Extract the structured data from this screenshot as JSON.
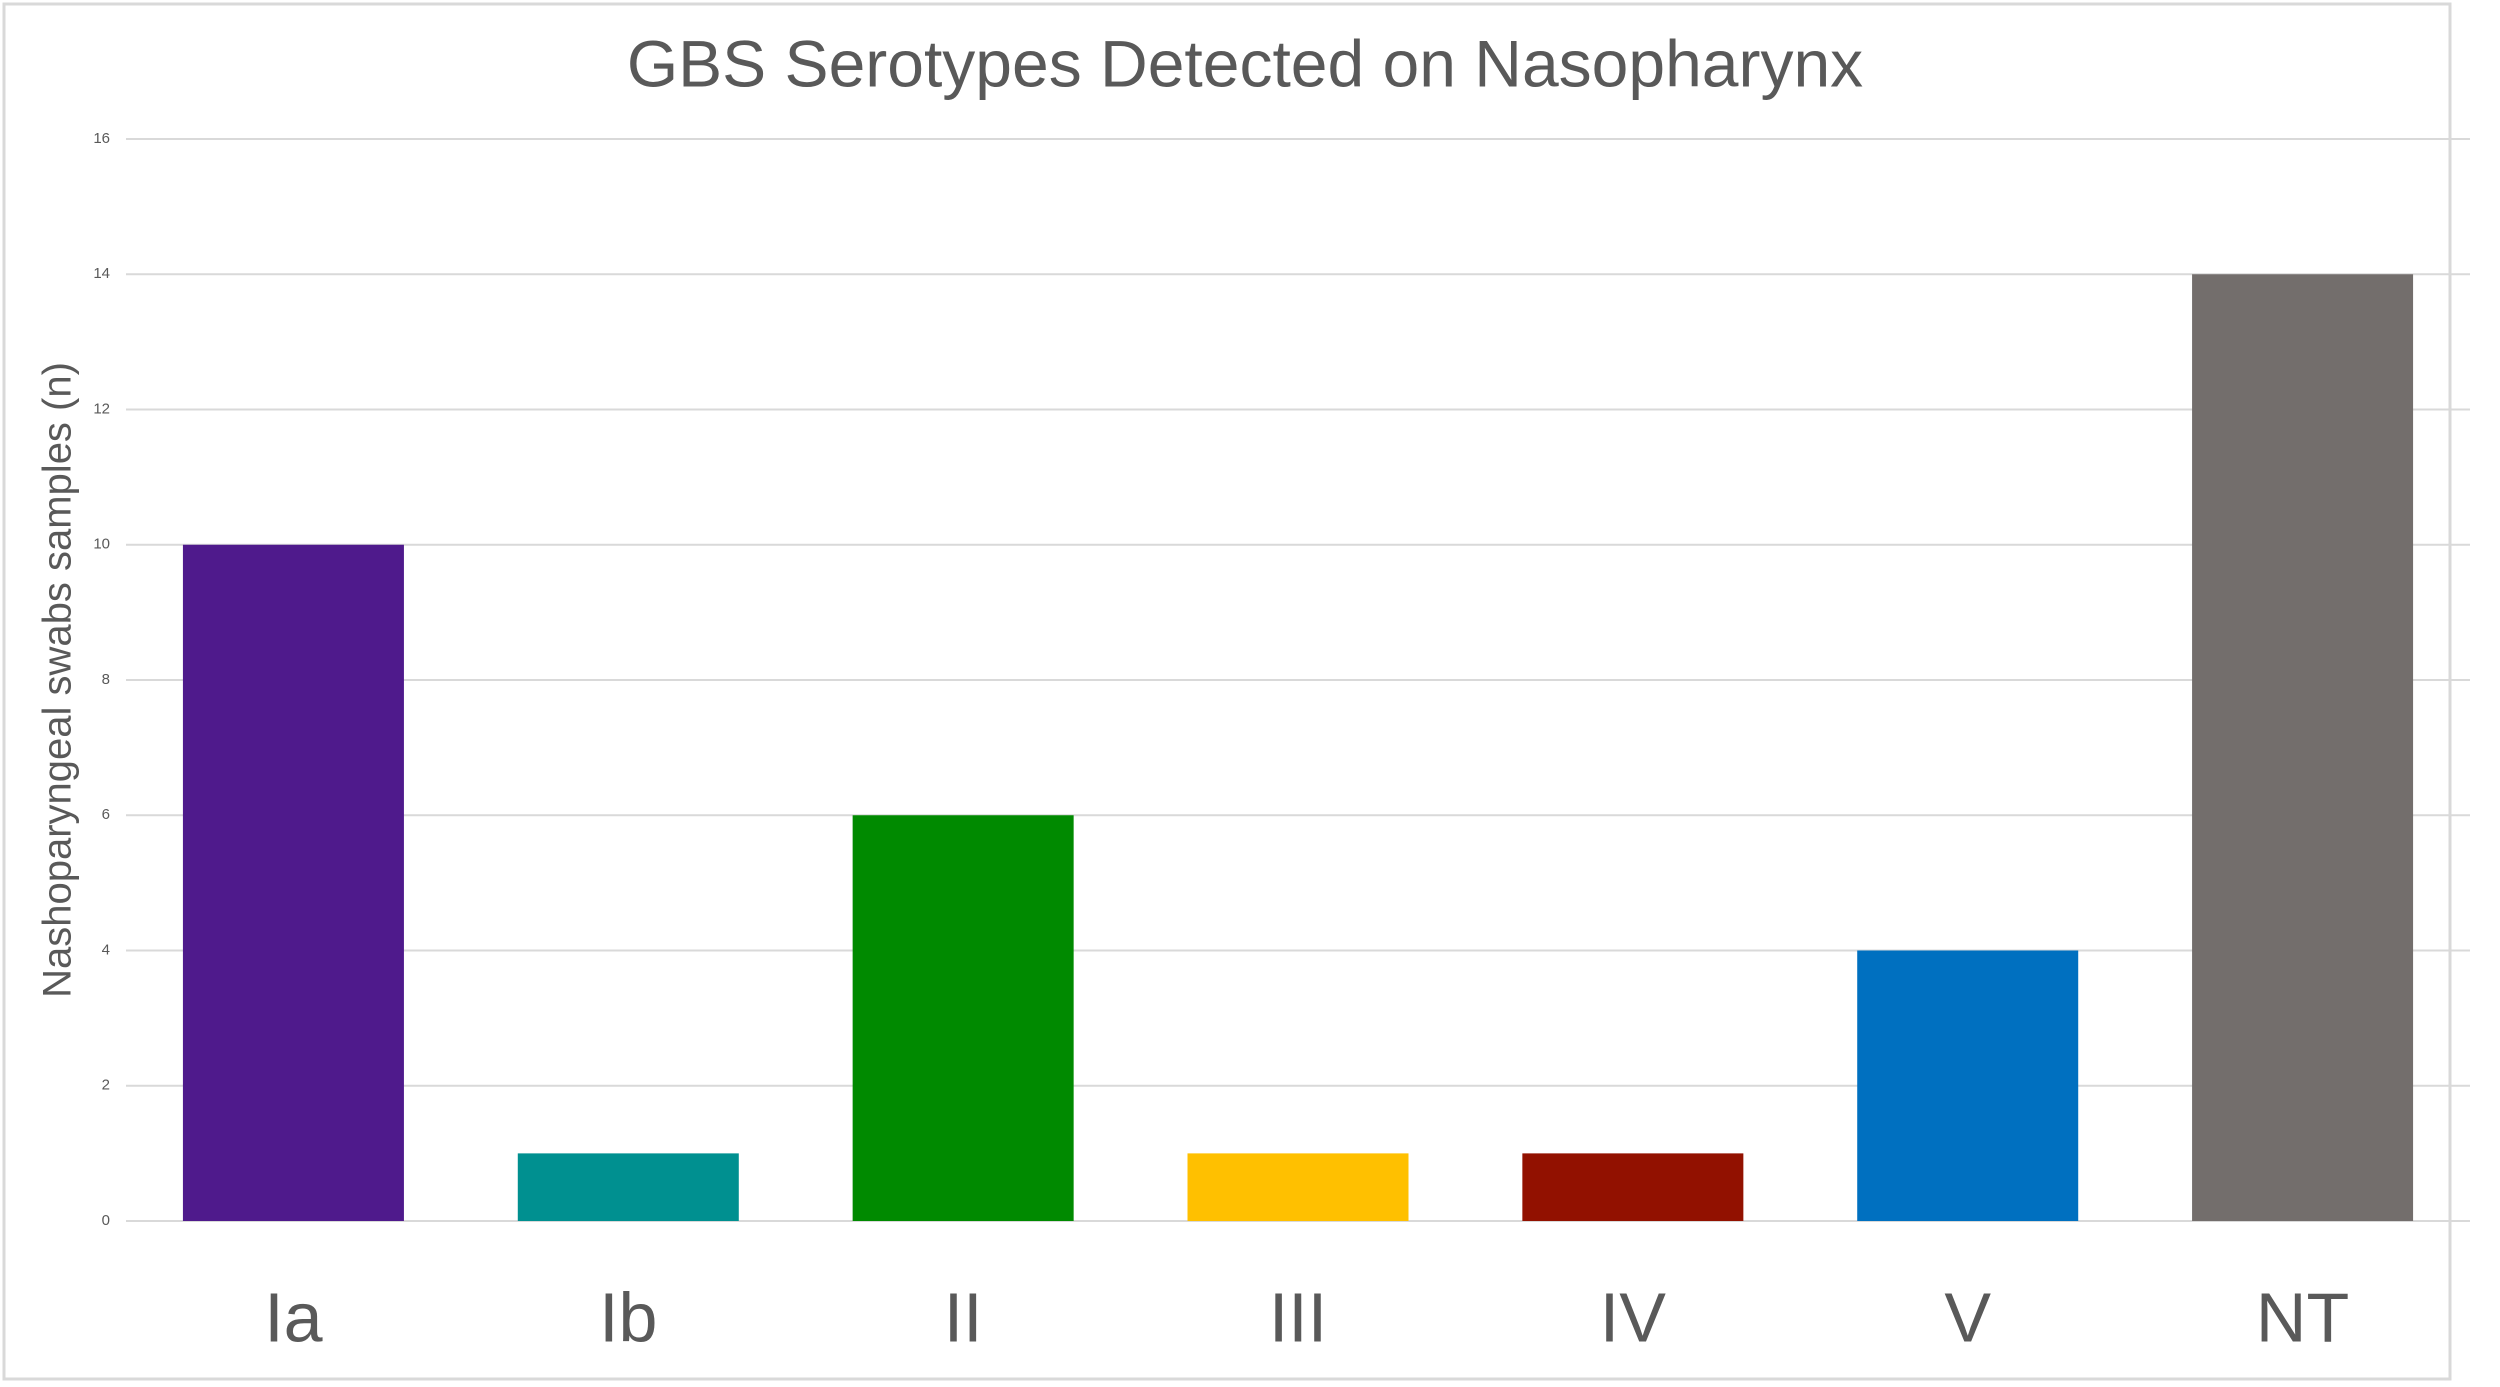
{
  "chart_data": {
    "type": "bar",
    "title": "GBS Serotypes Detected on Nasopharynx",
    "y_label": "Nashoparyngeal  swabs samples (n)",
    "categories": [
      "Ia",
      "Ib",
      "II",
      "III",
      "IV",
      "V",
      "NT"
    ],
    "values": [
      10,
      1,
      6,
      1,
      1,
      4,
      14
    ],
    "colors": [
      "#4f1a8c",
      "#009090",
      "#008a00",
      "#ffc000",
      "#921100",
      "#0070c0",
      "#736e6c"
    ],
    "ylim": [
      0,
      16
    ],
    "yticks": [
      0,
      2,
      4,
      6,
      8,
      10,
      12,
      14,
      16
    ],
    "grid": true
  }
}
